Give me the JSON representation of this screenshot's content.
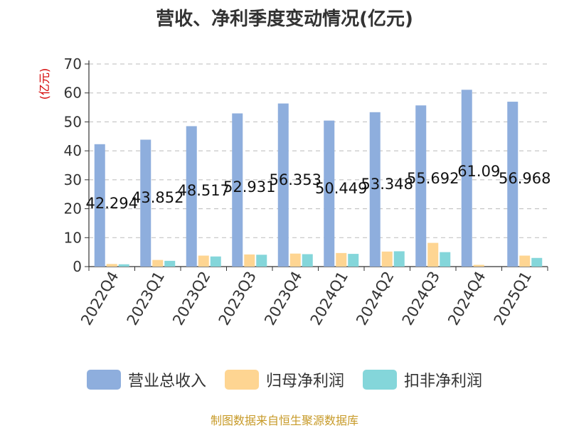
{
  "chart_data": {
    "type": "bar",
    "title": "营收、净利季度变动情况(亿元)",
    "ylabel": "(亿元)",
    "ylim": [
      0,
      70
    ],
    "yticks": [
      0,
      10,
      20,
      30,
      40,
      50,
      60,
      70
    ],
    "grid": true,
    "legend_position": "bottom",
    "categories": [
      "2022Q4",
      "2023Q1",
      "2023Q2",
      "2023Q3",
      "2023Q4",
      "2024Q1",
      "2024Q2",
      "2024Q3",
      "2024Q4",
      "2025Q1"
    ],
    "series": [
      {
        "name": "营业总收入",
        "color": "#8eaedd",
        "values": [
          42.294,
          43.852,
          48.517,
          52.931,
          56.353,
          50.449,
          53.348,
          55.692,
          61.09,
          56.968
        ]
      },
      {
        "name": "归母净利润",
        "color": "#fed592",
        "values": [
          0.9,
          2.3,
          3.8,
          4.2,
          4.5,
          4.7,
          5.2,
          8.2,
          0.6,
          3.8
        ]
      },
      {
        "name": "扣非净利润",
        "color": "#84d6da",
        "values": [
          0.8,
          2.0,
          3.5,
          4.1,
          4.3,
          4.4,
          5.3,
          5.0,
          0.0,
          3.0
        ]
      }
    ],
    "data_labels": [
      "42.294",
      "43.852",
      "48.517",
      "52.931",
      "56.353",
      "50.449",
      "53.348",
      "55.692",
      "61.09",
      "56.968"
    ]
  },
  "footer": {
    "source": "制图数据来自恒生聚源数据库"
  },
  "ui": {
    "axis_color": "#333333",
    "grid_color": "#bbbbbb",
    "ylabel_color": "#d40000"
  }
}
